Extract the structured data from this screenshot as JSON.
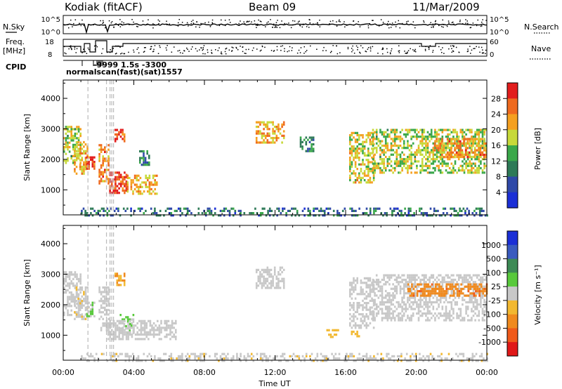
{
  "header": {
    "station": "Kodiak (fitACF)",
    "beam": "Beam 09",
    "date": "11/Mar/2009"
  },
  "top_panels": {
    "nsky_label": "N.Sky",
    "nsearch_label": "N.Search",
    "freq_label_1": "Freq.",
    "freq_label_2": "[MHz]",
    "nave_label": "Nave",
    "cpid_label": "CPID",
    "noise_ticks_left": [
      "10^5",
      "10^0"
    ],
    "noise_ticks_right": [
      "10^5",
      "10^0"
    ],
    "freq_ticks_left": [
      "18",
      "8"
    ],
    "nave_ticks_right": [
      "60",
      "0"
    ],
    "cpid_text_1": "-9999 1.5s -3300",
    "cpid_text_2": "normalscan(fast)(sat)1557"
  },
  "colors": {
    "power_scale": [
      "#1b2fd6",
      "#2f49a8",
      "#2e7a57",
      "#3aa84a",
      "#c7d93a",
      "#f5a020",
      "#ef6a1f",
      "#e21d1d"
    ],
    "velocity_scale": [
      "#1b2fd6",
      "#3a5bbf",
      "#3d8a55",
      "#58c93b",
      "#c8c8c8",
      "#f2b830",
      "#f08a1e",
      "#f05a1a",
      "#e01818"
    ]
  },
  "chart_data": [
    {
      "type": "heatmap",
      "name_panel": "power",
      "xlabel": "",
      "ylabel": "Slant Range [km]",
      "x_ticks": [
        "00:00",
        "04:00",
        "08:00",
        "12:00",
        "16:00",
        "20:00",
        "00:00"
      ],
      "y_ticks": [
        "1000",
        "2000",
        "3000",
        "4000"
      ],
      "xlim_hours": [
        0,
        24
      ],
      "ylim_km": [
        180,
        4600
      ],
      "colorbar": {
        "label": "Power [dB]",
        "ticks": [
          "4",
          "8",
          "12",
          "16",
          "20",
          "24",
          "28"
        ],
        "range": [
          0,
          30
        ]
      },
      "regions": [
        {
          "t": [
            0.0,
            1.0
          ],
          "r": [
            1900,
            3100
          ],
          "value": 16
        },
        {
          "t": [
            0.6,
            1.4
          ],
          "r": [
            1500,
            2600
          ],
          "value": 20
        },
        {
          "t": [
            1.3,
            1.8
          ],
          "r": [
            1700,
            2100
          ],
          "value": 26
        },
        {
          "t": [
            2.0,
            2.6
          ],
          "r": [
            1200,
            2500
          ],
          "value": 22
        },
        {
          "t": [
            2.6,
            3.6
          ],
          "r": [
            900,
            1600
          ],
          "value": 27
        },
        {
          "t": [
            2.9,
            3.5
          ],
          "r": [
            2600,
            3000
          ],
          "value": 26
        },
        {
          "t": [
            3.6,
            5.3
          ],
          "r": [
            850,
            1500
          ],
          "value": 20
        },
        {
          "t": [
            4.3,
            4.9
          ],
          "r": [
            1800,
            2300
          ],
          "value": 10
        },
        {
          "t": [
            10.9,
            12.5
          ],
          "r": [
            2550,
            3250
          ],
          "value": 20
        },
        {
          "t": [
            13.4,
            14.2
          ],
          "r": [
            2250,
            2750
          ],
          "value": 10
        },
        {
          "t": [
            16.2,
            17.6
          ],
          "r": [
            1250,
            2900
          ],
          "value": 18
        },
        {
          "t": [
            17.5,
            24.0
          ],
          "r": [
            1600,
            3000
          ],
          "value": 16
        },
        {
          "t": [
            21.0,
            24.0
          ],
          "r": [
            2100,
            2700
          ],
          "value": 22
        },
        {
          "t": [
            1.0,
            24.0
          ],
          "r": [
            180,
            420
          ],
          "value": 8
        }
      ]
    },
    {
      "type": "heatmap",
      "name_panel": "velocity",
      "xlabel": "Time UT",
      "ylabel": "Slant Range [km]",
      "x_ticks": [
        "00:00",
        "04:00",
        "08:00",
        "12:00",
        "16:00",
        "20:00",
        "00:00"
      ],
      "y_ticks": [
        "1000",
        "2000",
        "3000",
        "4000"
      ],
      "xlim_hours": [
        0,
        24
      ],
      "ylim_km": [
        180,
        4600
      ],
      "colorbar": {
        "label": "Velocity [m s⁻¹]",
        "ticks": [
          "1000",
          "500",
          "100",
          "25",
          "-25",
          "-100",
          "-500",
          "-1000"
        ],
        "range": [
          -1200,
          1200
        ]
      },
      "regions": [
        {
          "t": [
            0.0,
            1.0
          ],
          "r": [
            1700,
            3100
          ],
          "value": 0
        },
        {
          "t": [
            0.6,
            1.4
          ],
          "r": [
            1500,
            2600
          ],
          "value": -60
        },
        {
          "t": [
            1.3,
            1.8
          ],
          "r": [
            1600,
            2100
          ],
          "value": 120
        },
        {
          "t": [
            2.0,
            2.6
          ],
          "r": [
            1200,
            2600
          ],
          "value": 0
        },
        {
          "t": [
            2.9,
            3.6
          ],
          "r": [
            2650,
            3050
          ],
          "value": -400
        },
        {
          "t": [
            3.2,
            4.0
          ],
          "r": [
            1100,
            1700
          ],
          "value": 120
        },
        {
          "t": [
            2.5,
            6.4
          ],
          "r": [
            850,
            1500
          ],
          "value": 0
        },
        {
          "t": [
            10.9,
            12.5
          ],
          "r": [
            2550,
            3250
          ],
          "value": 0
        },
        {
          "t": [
            16.2,
            17.6
          ],
          "r": [
            1250,
            2900
          ],
          "value": 0
        },
        {
          "t": [
            17.5,
            24.0
          ],
          "r": [
            1500,
            3000
          ],
          "value": 0
        },
        {
          "t": [
            19.5,
            24.0
          ],
          "r": [
            2300,
            2700
          ],
          "value": -600
        },
        {
          "t": [
            14.8,
            15.6
          ],
          "r": [
            950,
            1200
          ],
          "value": -300
        },
        {
          "t": [
            16.3,
            16.8
          ],
          "r": [
            1000,
            1150
          ],
          "value": -300
        },
        {
          "t": [
            1.0,
            24.0
          ],
          "r": [
            180,
            420
          ],
          "value": -80
        }
      ]
    }
  ]
}
